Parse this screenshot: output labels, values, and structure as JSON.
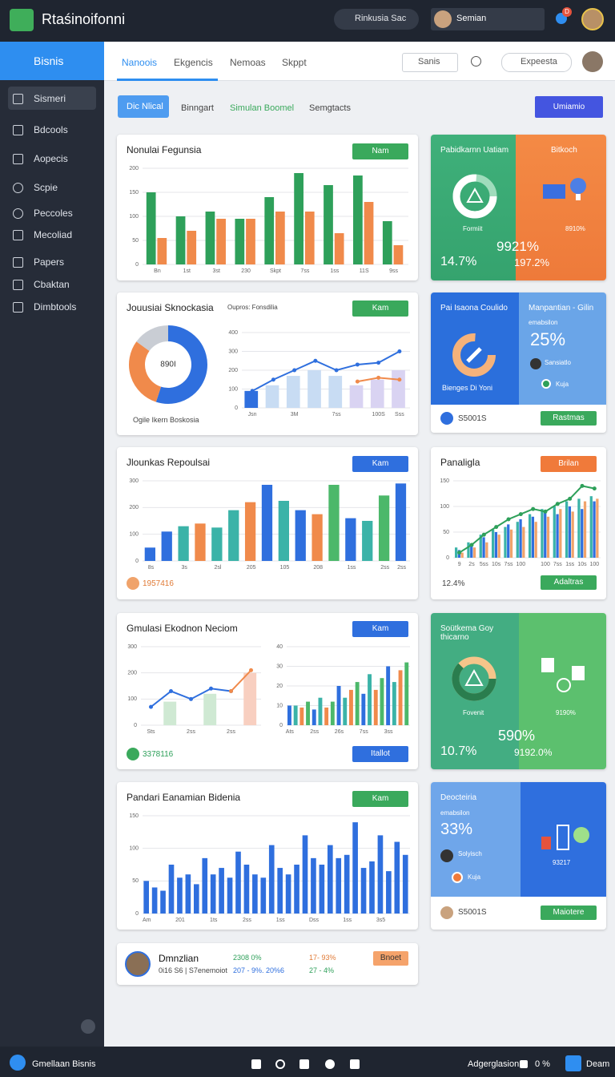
{
  "topbar": {
    "app_name": "Rtaśinoifonni",
    "search": "Rinkusia Sac",
    "user": "Semian",
    "badge": "D"
  },
  "sidebar": {
    "title": "Bisnis",
    "items": [
      "Sismeri",
      "Bdcools",
      "Aopecis",
      "Scpie",
      "Peccoles",
      "Mecoliad",
      "Papers",
      "Cbaktan",
      "Dimbtools"
    ]
  },
  "nav": {
    "tabs": [
      "Nanoois",
      "Ekgencis",
      "Nemoas",
      "Skppt"
    ],
    "search": "Sanis",
    "explore": "Expeesta"
  },
  "filters": {
    "items": [
      "Dic Nlical",
      "Binngart",
      "Simulan Boomel",
      "Semgtacts"
    ],
    "action": "Umiamio"
  },
  "revenue": {
    "title": "Nonulai Fegunsia",
    "button": "Nam",
    "chart": {
      "type": "bar",
      "grid": true,
      "ylim": [
        0,
        200
      ],
      "yticks": [
        0,
        50,
        100,
        150,
        200
      ],
      "categories": [
        "Bn",
        "1st",
        "3st",
        "230",
        "Skpt",
        "7ss",
        "1ss",
        "11S",
        "9ss"
      ],
      "series": [
        {
          "color": "#2ea05a",
          "values": [
            150,
            100,
            110,
            95,
            140,
            190,
            165,
            185,
            90
          ]
        },
        {
          "color": "#f08a4b",
          "values": [
            55,
            70,
            95,
            95,
            110,
            110,
            65,
            130,
            40
          ]
        }
      ]
    }
  },
  "segments": {
    "title": "Jouusiai Sknockasia",
    "button": "Kam",
    "caption": "Ogile Ikern Boskosia",
    "donut": {
      "type": "pie",
      "values": [
        55,
        30,
        15
      ],
      "colors": [
        "#2f6fde",
        "#f08a4b",
        "#c9cdd4"
      ],
      "center": "890I"
    },
    "chart_title": "Oupros: Fonsdilia",
    "chart": {
      "type": "combo",
      "grid": true,
      "ylim": [
        0,
        400
      ],
      "yticks": [
        0,
        100,
        200,
        300,
        400
      ],
      "categories": [
        "Jsn",
        null,
        "3M",
        null,
        "7ss",
        null,
        "100S",
        "Sss"
      ],
      "series": [
        {
          "type": "bar",
          "colors": [
            "#2f6fde",
            "#c8dcf3",
            "#c8dcf3",
            "#c8dcf3",
            "#c8dcf3",
            "#d9d3f2",
            "#d9d3f2",
            "#d9d3f2"
          ],
          "values": [
            90,
            120,
            170,
            200,
            170,
            120,
            150,
            200
          ]
        },
        {
          "type": "line",
          "color": "#2f6fde",
          "values": [
            90,
            150,
            200,
            250,
            200,
            230,
            240,
            300
          ]
        },
        {
          "type": "line",
          "color": "#f08a4b",
          "values": [
            null,
            null,
            null,
            null,
            null,
            140,
            160,
            150
          ]
        }
      ]
    }
  },
  "reports": {
    "title": "Jlounkas Repoulsai",
    "button": "Kam",
    "footer": "1957416",
    "chart": {
      "type": "bar",
      "grid": true,
      "ylim": [
        0,
        300
      ],
      "yticks": [
        0,
        100,
        200,
        300
      ],
      "categories": [
        "8s",
        null,
        "3s",
        null,
        "2sl",
        null,
        "205",
        null,
        "105",
        null,
        "208",
        null,
        "1ss",
        null,
        "2ss",
        "2ss"
      ],
      "series": [
        {
          "colors": [
            "#2f6fde",
            "#2f6fde",
            "#3bb3a8",
            "#f08a4b",
            "#3bb3a8",
            "#3bb3a8",
            "#f08a4b",
            "#2f6fde",
            "#3bb3a8",
            "#2f6fde",
            "#f08a4b",
            "#4cb86a",
            "#2f6fde",
            "#3bb3a8",
            "#4cb86a",
            "#2f6fde"
          ],
          "values": [
            50,
            110,
            130,
            140,
            125,
            190,
            220,
            285,
            225,
            190,
            175,
            285,
            160,
            150,
            245,
            290
          ]
        }
      ]
    }
  },
  "simulation": {
    "title": "Gmulasi Ekodnon Neciom",
    "button": "Kam",
    "footer": "3378116",
    "action": "Itallot",
    "left_chart": {
      "type": "combo",
      "grid": true,
      "ylim": [
        0,
        300
      ],
      "yticks": [
        0,
        100,
        200,
        300
      ],
      "categories": [
        "Sts",
        null,
        "2ss",
        null,
        "2ss",
        null
      ],
      "series": [
        {
          "type": "bar",
          "colors": [
            "#cfe9d3",
            "#cfe9d3",
            "#cfe9d3",
            "#cfe9d3",
            "#cfe9d3",
            "#f8cfc0"
          ],
          "values": [
            null,
            90,
            null,
            120,
            null,
            200
          ]
        },
        {
          "type": "line",
          "color": "#2f6fde",
          "values": [
            70,
            130,
            100,
            140,
            130,
            null
          ]
        },
        {
          "type": "line",
          "color": "#f08a4b",
          "values": [
            null,
            null,
            null,
            null,
            130,
            210
          ]
        }
      ]
    },
    "right_chart": {
      "type": "bar",
      "grid": true,
      "ylim": [
        0,
        40
      ],
      "yticks": [
        0,
        10,
        20,
        30,
        40
      ],
      "categories": [
        "Ats",
        null,
        null,
        null,
        "2ss",
        null,
        null,
        null,
        "26s",
        null,
        null,
        null,
        "7ss",
        null,
        null,
        null,
        "3ss",
        null,
        null,
        null
      ],
      "series": [
        {
          "colors": [
            "#2f6fde",
            "#3bb3a8",
            "#f08a4b",
            "#4cb86a",
            "#2f6fde",
            "#3bb3a8",
            "#f08a4b",
            "#4cb86a",
            "#2f6fde",
            "#3bb3a8",
            "#f08a4b",
            "#4cb86a",
            "#2f6fde",
            "#3bb3a8",
            "#f08a4b",
            "#4cb86a",
            "#2f6fde",
            "#3bb3a8",
            "#f08a4b",
            "#4cb86a"
          ],
          "values": [
            10,
            10,
            9,
            12,
            8,
            14,
            9,
            12,
            20,
            14,
            18,
            22,
            16,
            26,
            18,
            24,
            30,
            22,
            28,
            32
          ]
        }
      ]
    }
  },
  "income": {
    "title": "Pandari Eanamian Bidenia",
    "button": "Kam",
    "chart": {
      "type": "bar",
      "grid": true,
      "ylim": [
        0,
        150
      ],
      "yticks": [
        0,
        50,
        100,
        150
      ],
      "categories": [
        "Am",
        null,
        null,
        null,
        "201",
        null,
        null,
        null,
        "1ts",
        null,
        null,
        null,
        "2ss",
        null,
        null,
        null,
        "1ss",
        null,
        null,
        null,
        "Dss",
        null,
        null,
        null,
        "1ss",
        null,
        null,
        null,
        "3s5",
        null,
        null,
        null
      ],
      "series": [
        {
          "color": "#2f6fde",
          "values": [
            50,
            40,
            35,
            75,
            55,
            60,
            45,
            85,
            60,
            70,
            55,
            95,
            75,
            60,
            55,
            105,
            70,
            60,
            75,
            120,
            85,
            75,
            105,
            85,
            90,
            140,
            70,
            80,
            120,
            65,
            110,
            90
          ]
        }
      ]
    }
  },
  "profile": {
    "name": "Dmnzlian",
    "detail": "0i16 S6 | S7enemoiot",
    "stat1": "2308 0%",
    "stat2": "207 - 9%. 20%6",
    "stat3": "17- 93%",
    "stat4": "27 - 4%",
    "button": "Bnoet"
  },
  "kpi1": {
    "left_title": "Pabidkarnn Uatiam",
    "left_caption": "Formiit",
    "right_title": "Bitkoch",
    "right_caption": "8910%",
    "big": "9921%",
    "value_a": "14.7%",
    "value_b": "197.2%"
  },
  "kpi2": {
    "left_title": "Pai Isaona Coulido",
    "left_caption": "Bienges Di Yoni",
    "right_title": "Manpantian - Gilin",
    "right_sub": "emabsilon",
    "percent": "25%",
    "item1": "Sansiatlo",
    "item2": "Kuja",
    "footer": "S5001S",
    "button": "Rastmas"
  },
  "trend": {
    "title": "Panaligla",
    "button": "Brilan",
    "footer": "12.4%",
    "action": "Adaltras",
    "chart": {
      "type": "combo",
      "grid": true,
      "ylim": [
        0,
        150
      ],
      "yticks": [
        0,
        50,
        100,
        150
      ],
      "categories": [
        "9",
        "2s",
        "5ss",
        "10s",
        "7ss",
        "100",
        null,
        "100",
        "7ss",
        "1ss",
        "10s",
        "100"
      ],
      "series": [
        {
          "type": "bar",
          "color": "#3bb3a8",
          "values": [
            20,
            30,
            45,
            55,
            60,
            70,
            85,
            95,
            100,
            110,
            115,
            120
          ]
        },
        {
          "type": "bar",
          "color": "#2f6fde",
          "values": [
            15,
            25,
            40,
            50,
            65,
            75,
            80,
            90,
            85,
            100,
            95,
            110
          ]
        },
        {
          "type": "bar",
          "color": "#f0a36b",
          "values": [
            10,
            20,
            30,
            45,
            55,
            60,
            70,
            80,
            95,
            90,
            110,
            115
          ]
        },
        {
          "type": "line",
          "color": "#2ea05a",
          "values": [
            10,
            25,
            45,
            60,
            75,
            85,
            95,
            90,
            105,
            115,
            140,
            135
          ]
        }
      ]
    }
  },
  "kpi3": {
    "title": "Soütkema Goy thicarno",
    "caption": "Fovenit",
    "right_caption": "9190%",
    "big": "590%",
    "value_a": "10.7%",
    "value_b": "9192.0%"
  },
  "kpi4": {
    "title": "Deocteiria",
    "sub": "emabsilon",
    "percent": "33%",
    "item1": "Solyisch",
    "item2": "Kuja",
    "right_caption": "93217",
    "footer": "S5001S",
    "button": "Maiotere"
  },
  "statusbar": {
    "left": "Gmellaan Bisnis",
    "right": "Adgerglasion",
    "pct": "0 %",
    "user": "Deam"
  }
}
